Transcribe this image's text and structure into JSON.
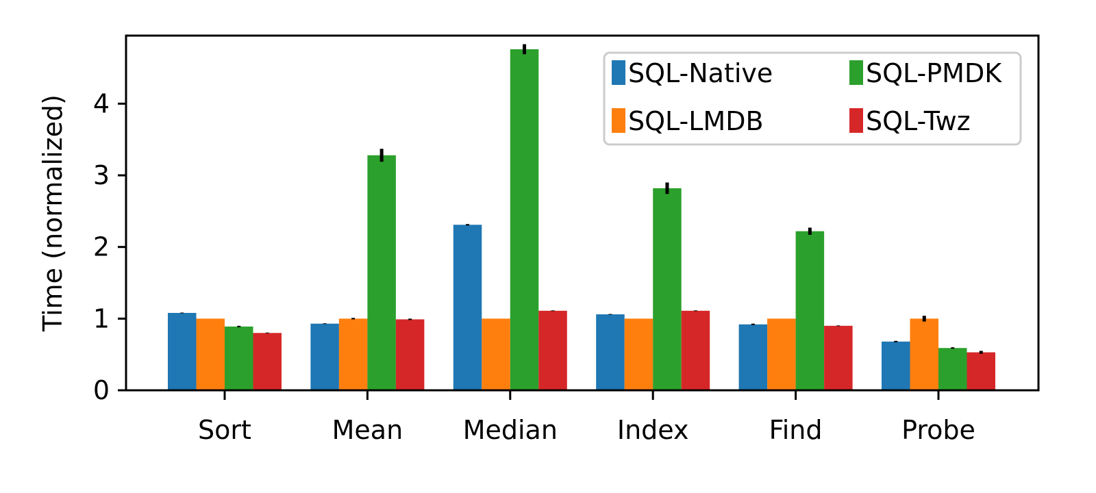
{
  "chart_data": {
    "type": "bar",
    "title": "",
    "xlabel": "",
    "ylabel": "Time (normalized)",
    "categories": [
      "Sort",
      "Mean",
      "Median",
      "Index",
      "Find",
      "Probe"
    ],
    "ylim": [
      0,
      4.95
    ],
    "yticks": [
      0,
      1,
      2,
      3,
      4
    ],
    "grid": false,
    "legend": {
      "placement": "top-right",
      "columns": 2
    },
    "series": [
      {
        "name": "SQL-Native",
        "color": "#1f77b4",
        "values": [
          1.08,
          0.93,
          2.31,
          1.06,
          0.92,
          0.68
        ],
        "errors": [
          0.005,
          0.005,
          0.01,
          0.005,
          0.01,
          0.01
        ]
      },
      {
        "name": "SQL-LMDB",
        "color": "#ff7f0e",
        "values": [
          1.0,
          1.0,
          1.0,
          1.0,
          1.0,
          1.0
        ],
        "errors": [
          0.0,
          0.01,
          0.0,
          0.0,
          0.0,
          0.04
        ]
      },
      {
        "name": "SQL-PMDK",
        "color": "#2ca02c",
        "values": [
          0.89,
          3.28,
          4.76,
          2.82,
          2.22,
          0.59
        ],
        "errors": [
          0.01,
          0.09,
          0.07,
          0.08,
          0.05,
          0.01
        ]
      },
      {
        "name": "SQL-Twz",
        "color": "#d62728",
        "values": [
          0.8,
          0.99,
          1.11,
          1.11,
          0.9,
          0.53
        ],
        "errors": [
          0.005,
          0.01,
          0.005,
          0.005,
          0.005,
          0.02
        ]
      }
    ]
  }
}
